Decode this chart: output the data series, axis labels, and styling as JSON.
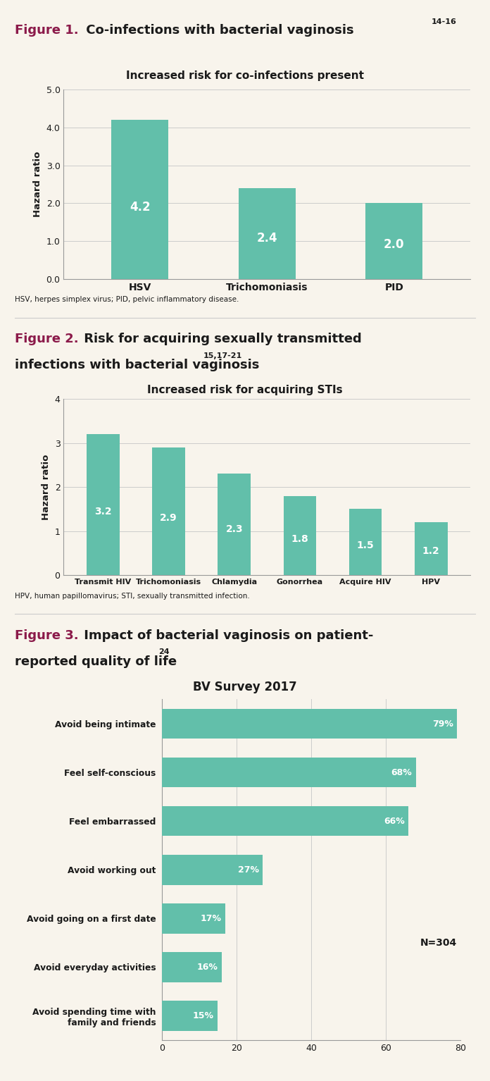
{
  "bg_color": "#f8f4ec",
  "teal_color": "#62bfaa",
  "white_text": "#ffffff",
  "dark_text": "#1a1a1a",
  "purple_color": "#8b1a4a",
  "grid_color": "#cccccc",
  "fig1_title_bold": "Figure 1.",
  "fig1_title_rest": " Co-infections with bacterial vaginosis",
  "fig1_title_sup": "14-16",
  "fig1_subtitle": "Increased risk for co-infections present",
  "fig1_categories": [
    "HSV",
    "Trichomoniasis",
    "PID"
  ],
  "fig1_values": [
    4.2,
    2.4,
    2.0
  ],
  "fig1_ylim": [
    0.0,
    5.0
  ],
  "fig1_yticks": [
    0.0,
    1.0,
    2.0,
    3.0,
    4.0,
    5.0
  ],
  "fig1_ylabel": "Hazard ratio",
  "fig1_footnote": "HSV, herpes simplex virus; PID, pelvic inflammatory disease.",
  "fig2_title_bold": "Figure 2.",
  "fig2_title_rest": " Risk for acquiring sexually transmitted",
  "fig2_title_rest2": "infections with bacterial vaginosis",
  "fig2_title_sup": "15,17-21",
  "fig2_subtitle": "Increased risk for acquiring STIs",
  "fig2_categories": [
    "Transmit HIV",
    "Trichomoniasis",
    "Chlamydia",
    "Gonorrhea",
    "Acquire HIV",
    "HPV"
  ],
  "fig2_values": [
    3.2,
    2.9,
    2.3,
    1.8,
    1.5,
    1.2
  ],
  "fig2_ylim": [
    0,
    4
  ],
  "fig2_yticks": [
    0,
    1,
    2,
    3,
    4
  ],
  "fig2_ylabel": "Hazard ratio",
  "fig2_footnote": "HPV, human papillomavirus; STI, sexually transmitted infection.",
  "fig3_title_bold": "Figure 3.",
  "fig3_title_rest": " Impact of bacterial vaginosis on patient-",
  "fig3_title_rest2": "reported quality of life",
  "fig3_title_sup": "24",
  "fig3_subtitle": "BV Survey 2017",
  "fig3_categories": [
    "Avoid being intimate",
    "Feel self-conscious",
    "Feel embarrassed",
    "Avoid working out",
    "Avoid going on a first date",
    "Avoid everyday activities",
    "Avoid spending time with\nfamily and friends"
  ],
  "fig3_values": [
    79,
    68,
    66,
    27,
    17,
    16,
    15
  ],
  "fig3_xlim": [
    0,
    80
  ],
  "fig3_xticks": [
    0,
    20,
    40,
    60,
    80
  ],
  "fig3_annotation": "N=304"
}
